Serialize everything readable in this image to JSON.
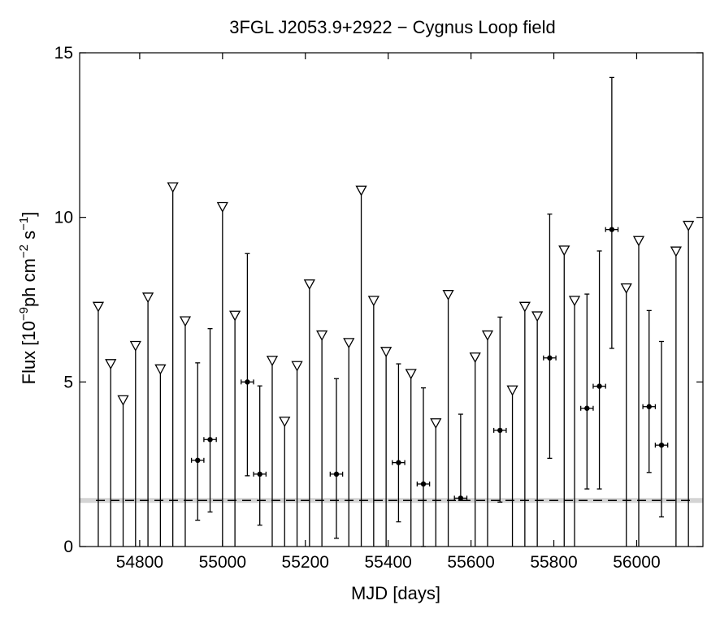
{
  "chart_data": {
    "type": "scatter",
    "title": "3FGL J2053.9+2922 − Cygnus Loop field",
    "xlabel": "MJD [days]",
    "ylabel": {
      "prefix": "Flux [10",
      "exp1": "−9",
      "mid1": "ph cm",
      "exp2": "−2",
      "mid2": " s",
      "exp3": "−1",
      "suffix": "]"
    },
    "xlim": [
      54655,
      56160
    ],
    "ylim": [
      0,
      15
    ],
    "xticks": [
      54800,
      55000,
      55200,
      55400,
      55600,
      55800,
      56000
    ],
    "yticks": [
      0,
      5,
      10,
      15
    ],
    "grid": false,
    "reference_level": 1.4,
    "detections": [
      {
        "x": 54940,
        "y": 2.62,
        "lo": 0.8,
        "hi": 5.58,
        "xerr": 15
      },
      {
        "x": 54970,
        "y": 3.25,
        "lo": 1.05,
        "hi": 6.62,
        "xerr": 15
      },
      {
        "x": 55060,
        "y": 5.0,
        "lo": 2.15,
        "hi": 8.9,
        "xerr": 15
      },
      {
        "x": 55090,
        "y": 2.2,
        "lo": 0.65,
        "hi": 4.88,
        "xerr": 15
      },
      {
        "x": 55275,
        "y": 2.2,
        "lo": 0.25,
        "hi": 5.1,
        "xerr": 15
      },
      {
        "x": 55425,
        "y": 2.55,
        "lo": 0.75,
        "hi": 5.55,
        "xerr": 15
      },
      {
        "x": 55485,
        "y": 1.9,
        "lo": 0.0,
        "hi": 4.82,
        "xerr": 15
      },
      {
        "x": 55575,
        "y": 1.47,
        "lo": 1.4,
        "hi": 4.02,
        "xerr": 15
      },
      {
        "x": 55670,
        "y": 3.53,
        "lo": 1.35,
        "hi": 6.97,
        "xerr": 15
      },
      {
        "x": 55790,
        "y": 5.73,
        "lo": 2.68,
        "hi": 10.1,
        "xerr": 15
      },
      {
        "x": 55880,
        "y": 4.2,
        "lo": 1.75,
        "hi": 7.67,
        "xerr": 15
      },
      {
        "x": 55910,
        "y": 4.87,
        "lo": 1.75,
        "hi": 8.98,
        "xerr": 15
      },
      {
        "x": 55940,
        "y": 9.63,
        "lo": 6.02,
        "hi": 14.25,
        "xerr": 15
      },
      {
        "x": 56030,
        "y": 4.25,
        "lo": 2.25,
        "hi": 7.17,
        "xerr": 15
      },
      {
        "x": 56060,
        "y": 3.08,
        "lo": 0.9,
        "hi": 6.23,
        "xerr": 15
      }
    ],
    "upper_limits": [
      {
        "x": 54700,
        "y": 7.32
      },
      {
        "x": 54730,
        "y": 5.58
      },
      {
        "x": 54760,
        "y": 4.48
      },
      {
        "x": 54790,
        "y": 6.13
      },
      {
        "x": 54820,
        "y": 7.6
      },
      {
        "x": 54850,
        "y": 5.42
      },
      {
        "x": 54880,
        "y": 10.95
      },
      {
        "x": 54910,
        "y": 6.88
      },
      {
        "x": 55000,
        "y": 10.35
      },
      {
        "x": 55030,
        "y": 7.05
      },
      {
        "x": 55120,
        "y": 5.68
      },
      {
        "x": 55150,
        "y": 3.83
      },
      {
        "x": 55180,
        "y": 5.52
      },
      {
        "x": 55210,
        "y": 8.0
      },
      {
        "x": 55240,
        "y": 6.45
      },
      {
        "x": 55305,
        "y": 6.22
      },
      {
        "x": 55335,
        "y": 10.85
      },
      {
        "x": 55365,
        "y": 7.5
      },
      {
        "x": 55395,
        "y": 5.95
      },
      {
        "x": 55455,
        "y": 5.28
      },
      {
        "x": 55515,
        "y": 3.78
      },
      {
        "x": 55545,
        "y": 7.68
      },
      {
        "x": 55610,
        "y": 5.78
      },
      {
        "x": 55640,
        "y": 6.45
      },
      {
        "x": 55700,
        "y": 4.78
      },
      {
        "x": 55730,
        "y": 7.32
      },
      {
        "x": 55760,
        "y": 7.03
      },
      {
        "x": 55825,
        "y": 9.03
      },
      {
        "x": 55850,
        "y": 7.5
      },
      {
        "x": 55975,
        "y": 7.88
      },
      {
        "x": 56005,
        "y": 9.32
      },
      {
        "x": 56095,
        "y": 9.0
      },
      {
        "x": 56125,
        "y": 9.78
      }
    ]
  }
}
